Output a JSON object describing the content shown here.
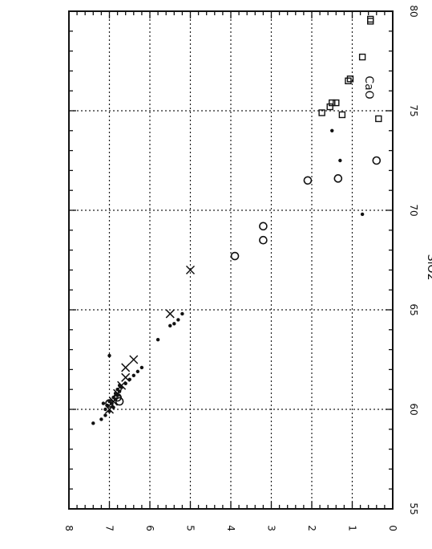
{
  "chart_data": {
    "type": "scatter",
    "orientation": "rotated-90",
    "title": "",
    "xlabel": "SiO2",
    "ylabel": "",
    "annotation": "CaO",
    "xlim": [
      55,
      80
    ],
    "ylim": [
      0,
      8
    ],
    "x_ticks": [
      "55",
      "60",
      "65",
      "70",
      "75",
      "80"
    ],
    "y_ticks": [
      "0",
      "1",
      "2",
      "3",
      "4",
      "5",
      "6",
      "7",
      "8"
    ],
    "grid": true,
    "series": [
      {
        "marker": "dot",
        "points": [
          [
            59.3,
            7.4
          ],
          [
            59.5,
            7.2
          ],
          [
            59.7,
            7.1
          ],
          [
            59.9,
            7.0
          ],
          [
            60.1,
            6.9
          ],
          [
            60.3,
            6.95
          ],
          [
            60.5,
            6.85
          ],
          [
            60.7,
            6.8
          ],
          [
            60.9,
            6.75
          ],
          [
            61.1,
            6.7
          ],
          [
            61.3,
            6.6
          ],
          [
            61.5,
            6.5
          ],
          [
            61.7,
            6.4
          ],
          [
            61.9,
            6.3
          ],
          [
            62.1,
            6.2
          ],
          [
            60.2,
            7.05
          ],
          [
            60.4,
            7.0
          ],
          [
            60.6,
            6.9
          ],
          [
            60.8,
            6.85
          ],
          [
            61.0,
            6.8
          ],
          [
            61.2,
            6.75
          ],
          [
            60.0,
            7.1
          ],
          [
            60.3,
            7.15
          ],
          [
            62.7,
            7.0
          ],
          [
            63.5,
            5.8
          ],
          [
            64.2,
            5.5
          ],
          [
            64.5,
            5.3
          ],
          [
            64.8,
            5.2
          ],
          [
            64.3,
            5.4
          ],
          [
            69.8,
            0.75
          ],
          [
            72.5,
            1.3
          ],
          [
            74.0,
            1.5
          ]
        ]
      },
      {
        "marker": "x",
        "points": [
          [
            60.0,
            7.0
          ],
          [
            60.4,
            6.9
          ],
          [
            60.8,
            6.8
          ],
          [
            61.2,
            6.7
          ],
          [
            61.6,
            6.6
          ],
          [
            62.1,
            6.6
          ],
          [
            62.5,
            6.4
          ],
          [
            64.8,
            5.5
          ],
          [
            67.0,
            5.0
          ]
        ]
      },
      {
        "marker": "circle",
        "points": [
          [
            60.3,
            7.0
          ],
          [
            60.6,
            6.8
          ],
          [
            60.4,
            6.75
          ],
          [
            67.7,
            3.9
          ],
          [
            68.5,
            3.2
          ],
          [
            69.2,
            3.2
          ],
          [
            71.5,
            2.1
          ],
          [
            71.6,
            1.35
          ],
          [
            72.5,
            0.4
          ]
        ]
      },
      {
        "marker": "square",
        "points": [
          [
            74.8,
            1.25
          ],
          [
            74.9,
            1.75
          ],
          [
            75.2,
            1.55
          ],
          [
            75.4,
            1.4
          ],
          [
            75.4,
            1.5
          ],
          [
            76.5,
            1.1
          ],
          [
            76.6,
            1.05
          ],
          [
            74.6,
            0.35
          ],
          [
            77.7,
            0.75
          ],
          [
            79.5,
            0.55
          ],
          [
            79.6,
            0.55
          ]
        ]
      }
    ]
  }
}
